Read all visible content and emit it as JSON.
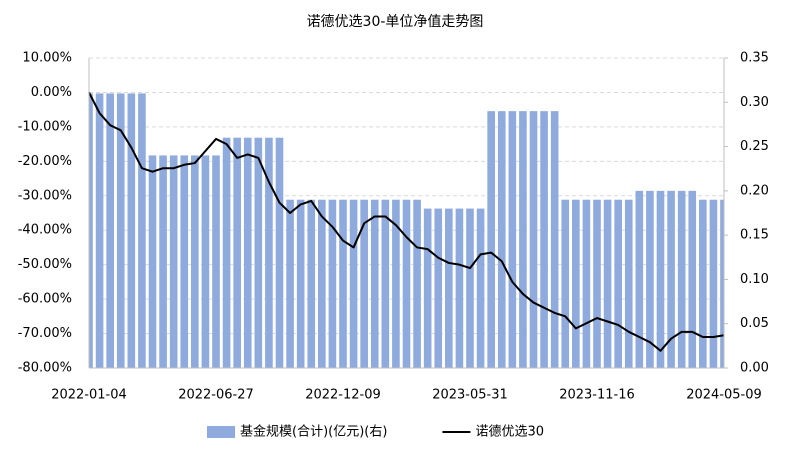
{
  "chart_data": {
    "type": "combo",
    "title": "诺德优选30-单位净值走势图",
    "categories": [
      "2022-01-04",
      null,
      null,
      null,
      null,
      null,
      null,
      null,
      null,
      null,
      null,
      null,
      "2022-06-27",
      null,
      null,
      null,
      null,
      null,
      null,
      null,
      null,
      null,
      null,
      null,
      "2022-12-09",
      null,
      null,
      null,
      null,
      null,
      null,
      null,
      null,
      null,
      null,
      null,
      "2023-05-31",
      null,
      null,
      null,
      null,
      null,
      null,
      null,
      null,
      null,
      null,
      null,
      "2023-11-16",
      null,
      null,
      null,
      null,
      null,
      null,
      null,
      null,
      null,
      null,
      null,
      "2024-05-09"
    ],
    "series": [
      {
        "name": "基金规模(合计)(亿元)(右)",
        "type": "bar",
        "axis": "y2",
        "color": "#8faadc",
        "values": [
          0.31,
          0.31,
          0.31,
          0.31,
          0.31,
          0.31,
          0.24,
          0.24,
          0.24,
          0.24,
          0.24,
          0.24,
          0.24,
          0.26,
          0.26,
          0.26,
          0.26,
          0.26,
          0.26,
          0.19,
          0.19,
          0.19,
          0.19,
          0.19,
          0.19,
          0.19,
          0.19,
          0.19,
          0.19,
          0.19,
          0.19,
          0.19,
          0.18,
          0.18,
          0.18,
          0.18,
          0.18,
          0.18,
          0.29,
          0.29,
          0.29,
          0.29,
          0.29,
          0.29,
          0.29,
          0.19,
          0.19,
          0.19,
          0.19,
          0.19,
          0.19,
          0.19,
          0.2,
          0.2,
          0.2,
          0.2,
          0.2,
          0.2,
          0.19,
          0.19,
          0.19
        ]
      },
      {
        "name": "诺德优选30",
        "type": "line",
        "axis": "y",
        "color": "#000000",
        "values": [
          0,
          -6,
          -9.5,
          -11,
          -16,
          -22,
          -23,
          -22,
          -22,
          -21,
          -20.5,
          -17,
          -13.5,
          -15,
          -19,
          -18,
          -19,
          -26,
          -32,
          -35,
          -32.5,
          -31.5,
          -36,
          -39,
          -43,
          -45,
          -38,
          -36,
          -36,
          -38.5,
          -42,
          -45,
          -45.5,
          -48,
          -49.5,
          -50,
          -51,
          -47,
          -46.5,
          -49,
          -55,
          -58.5,
          -61,
          -62.5,
          -64,
          -65,
          -68.5,
          -67,
          -65.5,
          -66.5,
          -67.5,
          -69.5,
          -71,
          -72.5,
          -75,
          -71.5,
          -69.5,
          -69.5,
          -71,
          -71,
          -70.5
        ]
      }
    ],
    "ylim": [
      -80,
      10
    ],
    "yticks": [
      {
        "value": 10,
        "label": "10.00%"
      },
      {
        "value": 0,
        "label": "0.00%"
      },
      {
        "value": -10,
        "label": "-10.00%"
      },
      {
        "value": -20,
        "label": "-20.00%"
      },
      {
        "value": -30,
        "label": "-30.00%"
      },
      {
        "value": -40,
        "label": "-40.00%"
      },
      {
        "value": -50,
        "label": "-50.00%"
      },
      {
        "value": -60,
        "label": "-60.00%"
      },
      {
        "value": -70,
        "label": "-70.00%"
      },
      {
        "value": -80,
        "label": "-80.00%"
      }
    ],
    "y2lim": [
      0,
      0.35
    ],
    "y2ticks": [
      {
        "value": 0,
        "label": "0.00"
      },
      {
        "value": 0.05,
        "label": "0.05"
      },
      {
        "value": 0.1,
        "label": "0.10"
      },
      {
        "value": 0.15,
        "label": "0.15"
      },
      {
        "value": 0.2,
        "label": "0.20"
      },
      {
        "value": 0.25,
        "label": "0.25"
      },
      {
        "value": 0.3,
        "label": "0.30"
      },
      {
        "value": 0.35,
        "label": "0.35"
      }
    ],
    "grid": true,
    "legend": "bottom"
  }
}
